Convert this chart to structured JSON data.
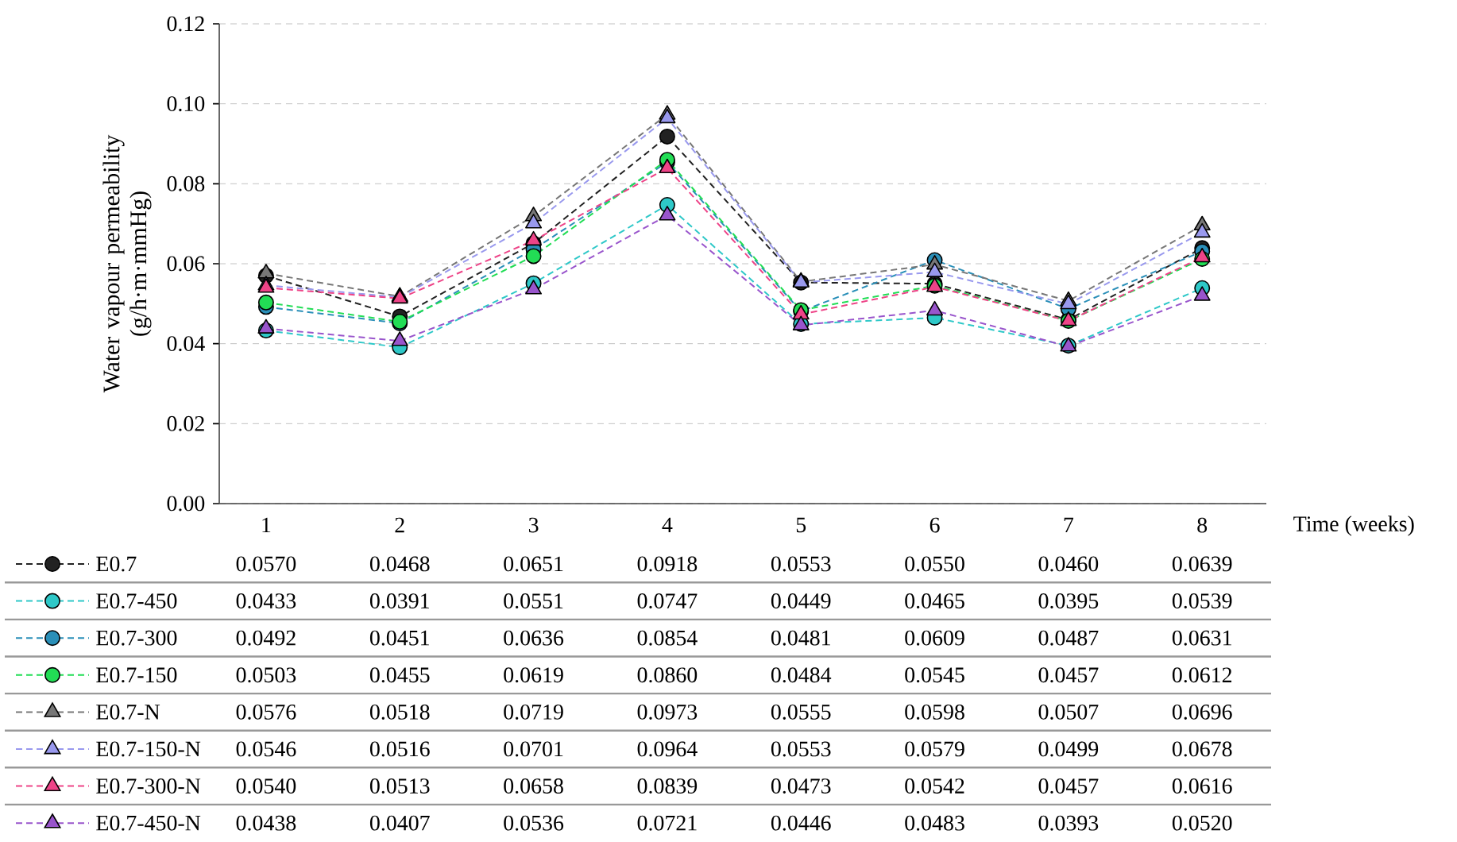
{
  "chart_data": {
    "type": "line",
    "xlabel": "Time (weeks)",
    "ylabel": "Water vapour permeability (g/h·m·mmHg)",
    "categories": [
      "1",
      "2",
      "3",
      "4",
      "5",
      "6",
      "7",
      "8"
    ],
    "ylim": [
      0,
      0.12
    ],
    "yticks": [
      {
        "value": 0,
        "label": "0.00"
      },
      {
        "value": 0.02,
        "label": "0.02"
      },
      {
        "value": 0.04,
        "label": "0.04"
      },
      {
        "value": 0.06,
        "label": "0.06"
      },
      {
        "value": 0.08,
        "label": "0.08"
      },
      {
        "value": 0.1,
        "label": "0.10"
      },
      {
        "value": 0.12,
        "label": "0.12"
      }
    ],
    "grid": "y",
    "legend": "bottom",
    "line_style": "dashed",
    "series": [
      {
        "name": "E0.7",
        "color": "#222222",
        "marker": "circle",
        "values": [
          0.057,
          0.0468,
          0.0651,
          0.0918,
          0.0553,
          0.055,
          0.046,
          0.0639
        ],
        "value_labels": [
          "0.0570",
          "0.0468",
          "0.0651",
          "0.0918",
          "0.0553",
          "0.0550",
          "0.0460",
          "0.0639"
        ]
      },
      {
        "name": "E0.7-450",
        "color": "#2EC8C8",
        "marker": "circle",
        "values": [
          0.0433,
          0.0391,
          0.0551,
          0.0747,
          0.0449,
          0.0465,
          0.0395,
          0.0539
        ],
        "value_labels": [
          "0.0433",
          "0.0391",
          "0.0551",
          "0.0747",
          "0.0449",
          "0.0465",
          "0.0395",
          "0.0539"
        ]
      },
      {
        "name": "E0.7-300",
        "color": "#2A8FB8",
        "marker": "circle",
        "values": [
          0.0492,
          0.0451,
          0.0636,
          0.0854,
          0.0481,
          0.0609,
          0.0487,
          0.0631
        ],
        "value_labels": [
          "0.0492",
          "0.0451",
          "0.0636",
          "0.0854",
          "0.0481",
          "0.0609",
          "0.0487",
          "0.0631"
        ]
      },
      {
        "name": "E0.7-150",
        "color": "#22DD55",
        "marker": "circle",
        "values": [
          0.0503,
          0.0455,
          0.0619,
          0.086,
          0.0484,
          0.0545,
          0.0457,
          0.0612
        ],
        "value_labels": [
          "0.0503",
          "0.0455",
          "0.0619",
          "0.0860",
          "0.0484",
          "0.0545",
          "0.0457",
          "0.0612"
        ]
      },
      {
        "name": "E0.7-N",
        "color": "#777777",
        "marker": "triangle",
        "values": [
          0.0576,
          0.0518,
          0.0719,
          0.0973,
          0.0555,
          0.0598,
          0.0507,
          0.0696
        ],
        "value_labels": [
          "0.0576",
          "0.0518",
          "0.0719",
          "0.0973",
          "0.0555",
          "0.0598",
          "0.0507",
          "0.0696"
        ]
      },
      {
        "name": "E0.7-150-N",
        "color": "#9999EE",
        "marker": "triangle",
        "values": [
          0.0546,
          0.0516,
          0.0701,
          0.0964,
          0.0553,
          0.0579,
          0.0499,
          0.0678
        ],
        "value_labels": [
          "0.0546",
          "0.0516",
          "0.0701",
          "0.0964",
          "0.0553",
          "0.0579",
          "0.0499",
          "0.0678"
        ]
      },
      {
        "name": "E0.7-300-N",
        "color": "#EE4488",
        "marker": "triangle",
        "values": [
          0.054,
          0.0513,
          0.0658,
          0.0839,
          0.0473,
          0.0542,
          0.0457,
          0.0616
        ],
        "value_labels": [
          "0.0540",
          "0.0513",
          "0.0658",
          "0.0839",
          "0.0473",
          "0.0542",
          "0.0457",
          "0.0616"
        ]
      },
      {
        "name": "E0.7-450-N",
        "color": "#9955CC",
        "marker": "triangle",
        "values": [
          0.0438,
          0.0407,
          0.0536,
          0.0721,
          0.0446,
          0.0483,
          0.0393,
          0.052
        ],
        "value_labels": [
          "0.0438",
          "0.0407",
          "0.0536",
          "0.0721",
          "0.0446",
          "0.0483",
          "0.0393",
          "0.0520"
        ]
      }
    ]
  }
}
